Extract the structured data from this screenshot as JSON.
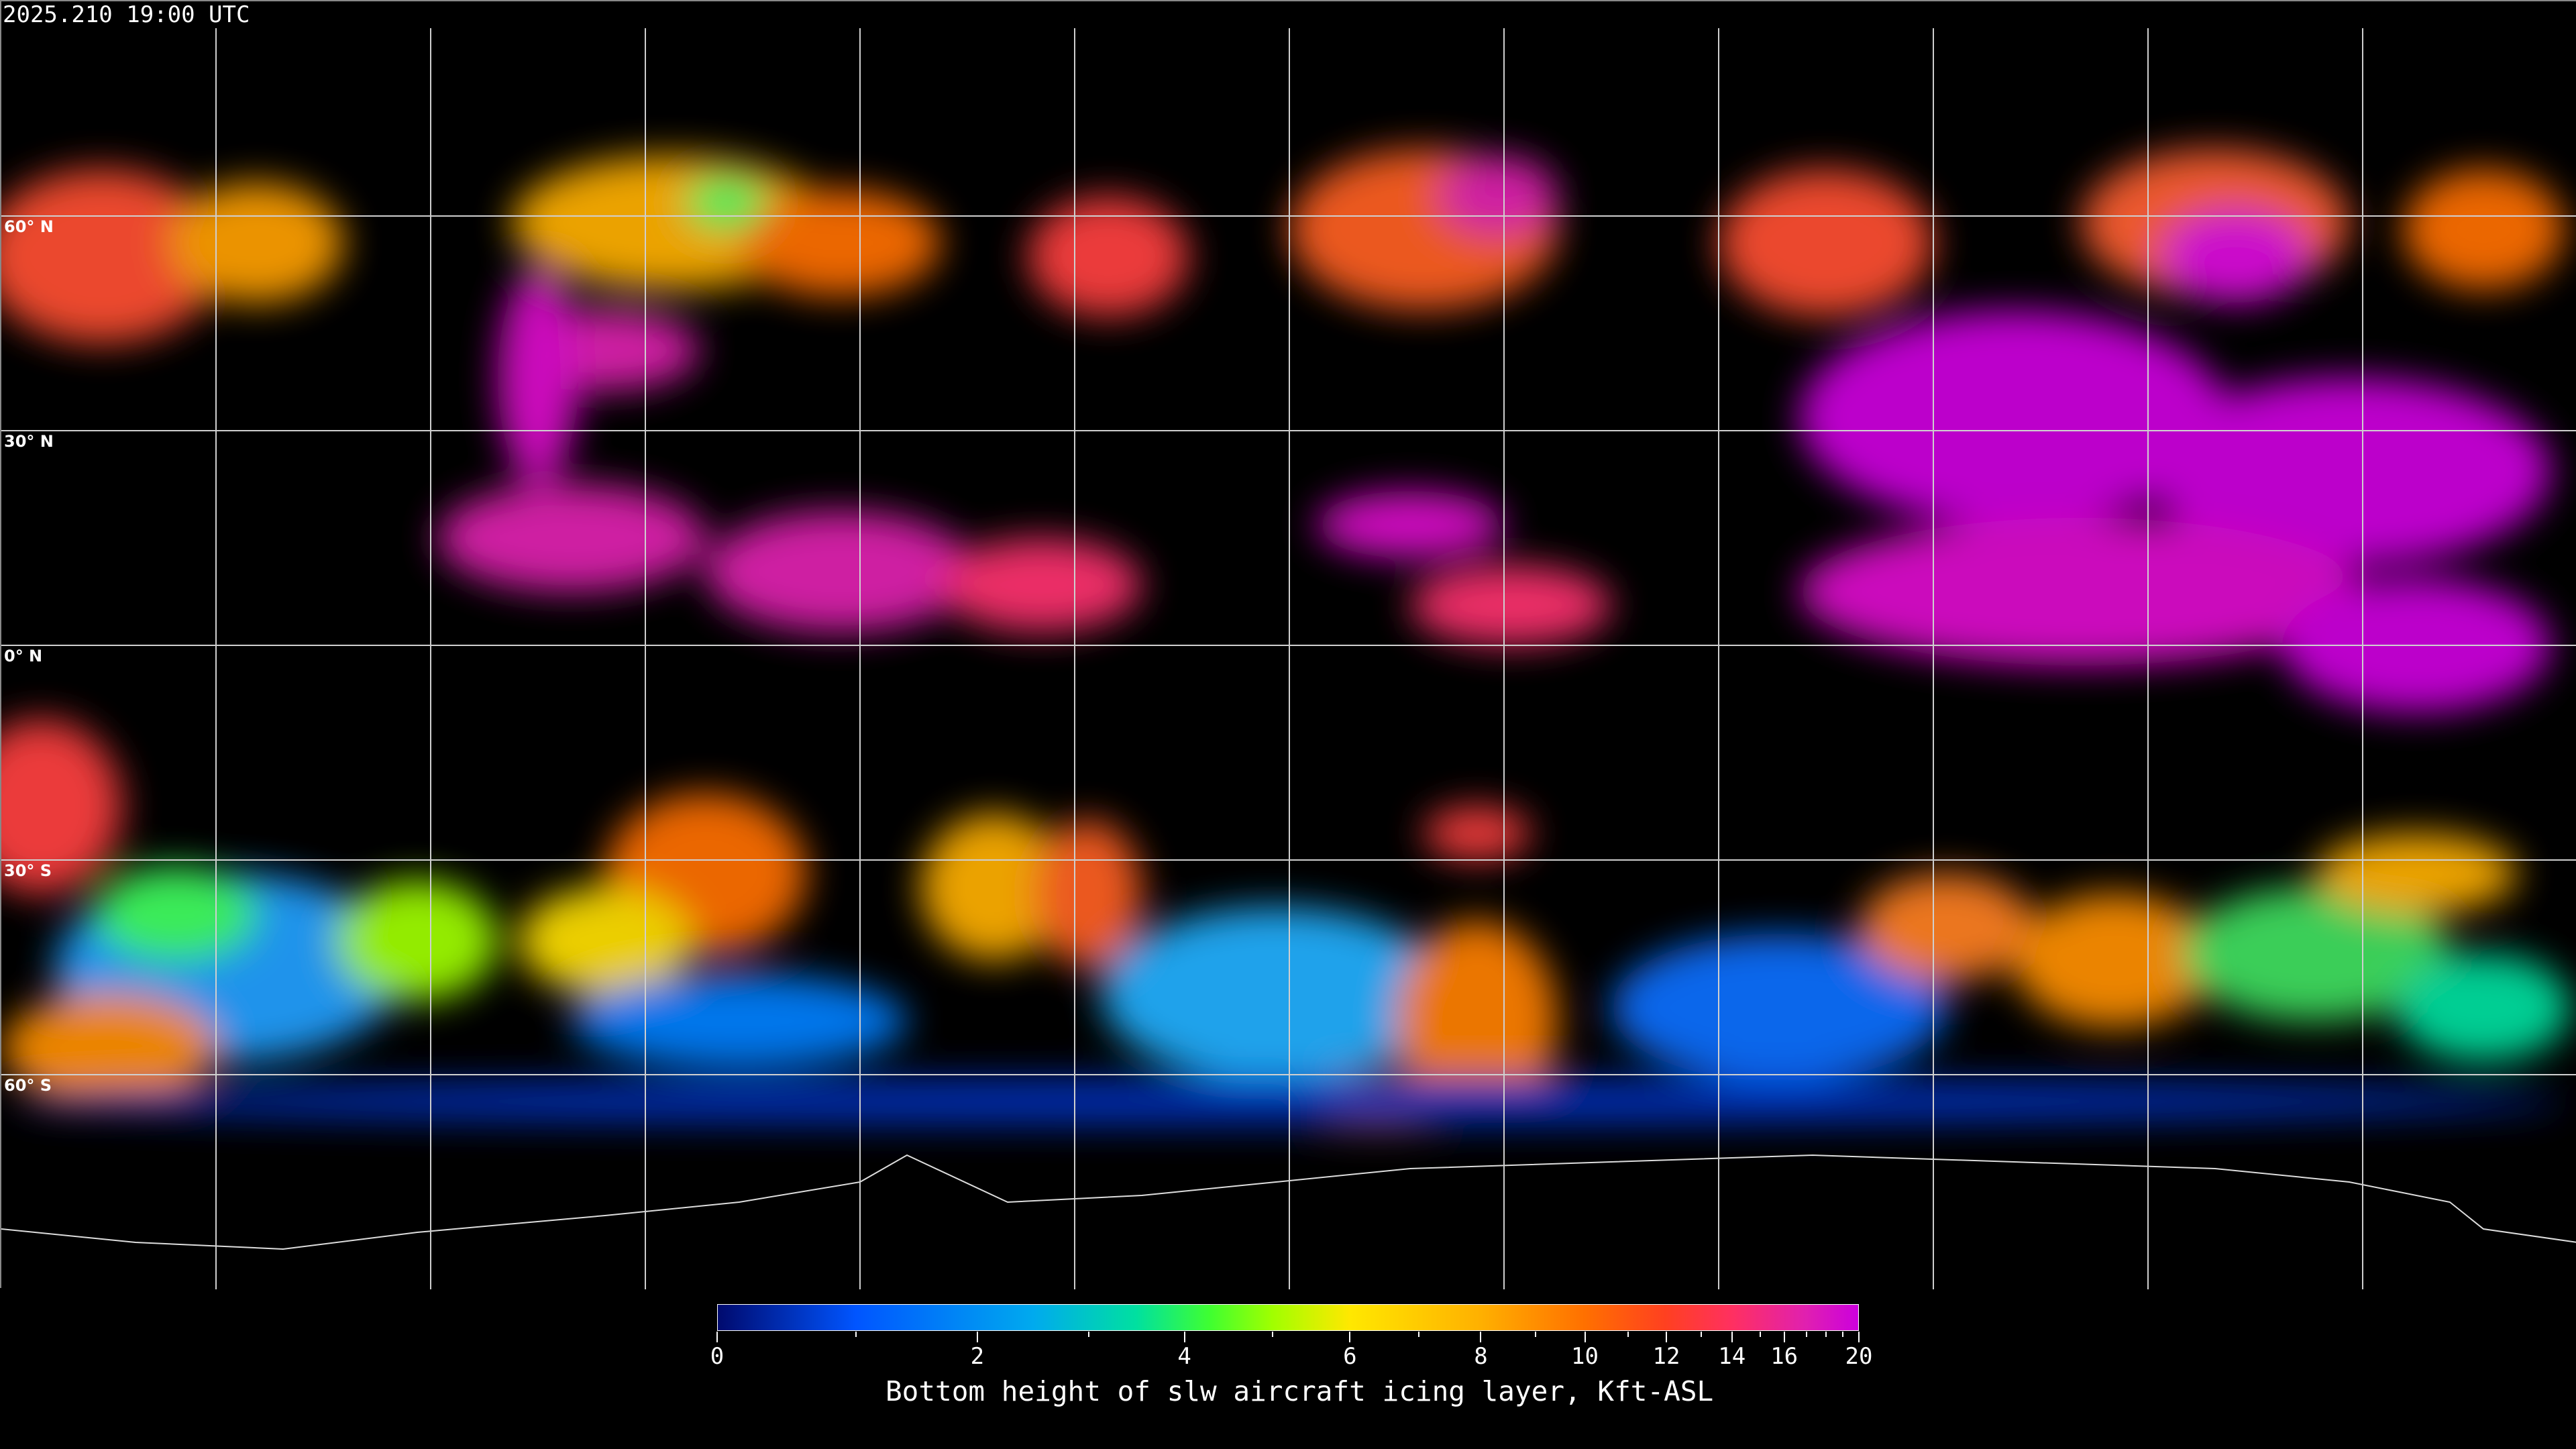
{
  "title": "2025.210 19:00 UTC",
  "latitude_labels": [
    "60° N",
    "30° N",
    "0° N",
    "30° S",
    "60° S"
  ],
  "colorbar": {
    "label": "Bottom height of slw aircraft icing layer, Kft-ASL",
    "min": 0,
    "max": 20,
    "major_ticks": [
      "0",
      "2",
      "4",
      "6",
      "8",
      "10",
      "12",
      "14",
      "16",
      "20"
    ],
    "minor_ticks": [
      1,
      3,
      5,
      7,
      9,
      11,
      13,
      15,
      17,
      18,
      19
    ],
    "colormap": [
      "#000a6e",
      "#0055ff",
      "#00aaee",
      "#00e0a0",
      "#40ff30",
      "#a0ff00",
      "#ffe800",
      "#ffb000",
      "#ff7000",
      "#ff4020",
      "#ff3060",
      "#e020b0",
      "#cc00dd"
    ]
  },
  "chart_data": {
    "type": "heatmap",
    "title": "2025.210 19:00 UTC",
    "projection": "equirectangular, global",
    "grid": true,
    "grid_spacing_deg": 30,
    "colorbar_label": "Bottom height of slw aircraft icing layer, Kft-ASL",
    "colorbar_range": [
      0,
      20
    ],
    "colorbar_tick_labels": [
      "0",
      "2",
      "4",
      "6",
      "8",
      "10",
      "12",
      "14",
      "16",
      "20"
    ]
  }
}
